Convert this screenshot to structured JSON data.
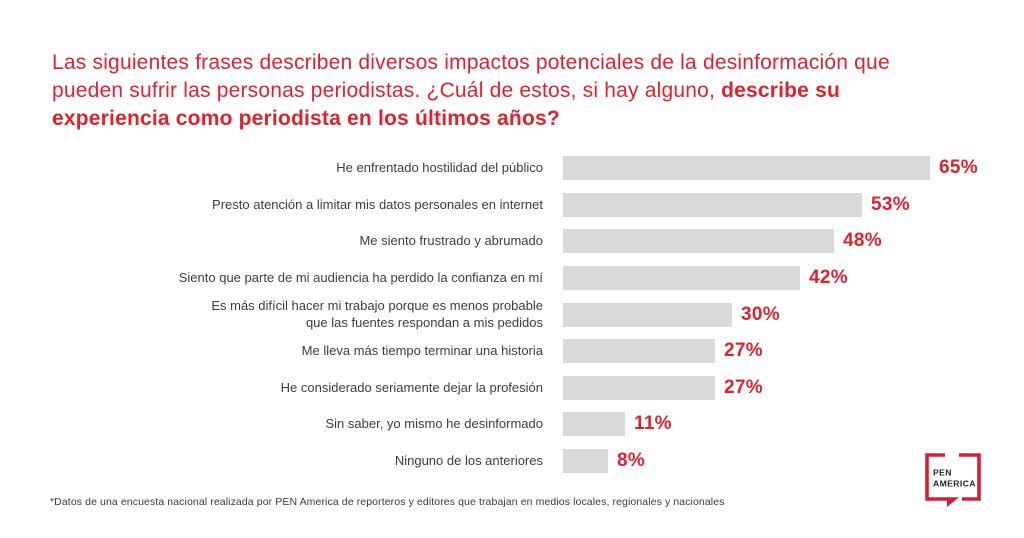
{
  "colors": {
    "accent_red": "#E2212F",
    "bar_gray": "#D9D9D9",
    "label_gray": "#3D3D3D",
    "footnote_gray": "#3A3A3A",
    "logo_red": "#D51F38",
    "logo_text": "#231F20",
    "background": "#FFFFFF"
  },
  "title": {
    "regular": "Las siguientes frases describen diversos impactos potenciales de la desinformación que pueden sufrir las personas periodistas. ¿Cuál de estos, si hay alguno, ",
    "bold": "describe su experiencia como periodista en los últimos años?"
  },
  "chart_data": {
    "type": "bar",
    "orientation": "horizontal",
    "title": "Las siguientes frases describen diversos impactos potenciales de la desinformación que pueden sufrir las personas periodistas. ¿Cuál de estos, si hay alguno, describe su experiencia como periodista en los últimos años?",
    "categories": [
      "He enfrentado hostilidad del público",
      "Presto atención a limitar mis datos personales en internet",
      "Me siento frustrado y abrumado",
      "Siento que parte de mi audiencia ha perdido la confianza en mí",
      "Es más difícil hacer mi trabajo porque es menos probable\nque las fuentes respondan a mis pedidos",
      "Me lleva más tiempo terminar una historia",
      "He considerado seriamente dejar la profesión",
      "Sin saber, yo mismo he desinformado",
      "Ninguno de los anteriores"
    ],
    "values": [
      65,
      53,
      48,
      42,
      30,
      27,
      27,
      11,
      8
    ],
    "value_suffix": "%",
    "xlim": [
      0,
      100
    ],
    "grid": false,
    "legend": false,
    "bar_color": "#D9D9D9",
    "value_label_color": "#E2212F",
    "xlabel": "",
    "ylabel": ""
  },
  "footnote": "*Datos de una encuesta nacional realizada por PEN America de reporteros y editores que trabajan en medios locales, regionales y nacionales",
  "logo": {
    "line1": "PEN",
    "line2": "AMERICA"
  }
}
